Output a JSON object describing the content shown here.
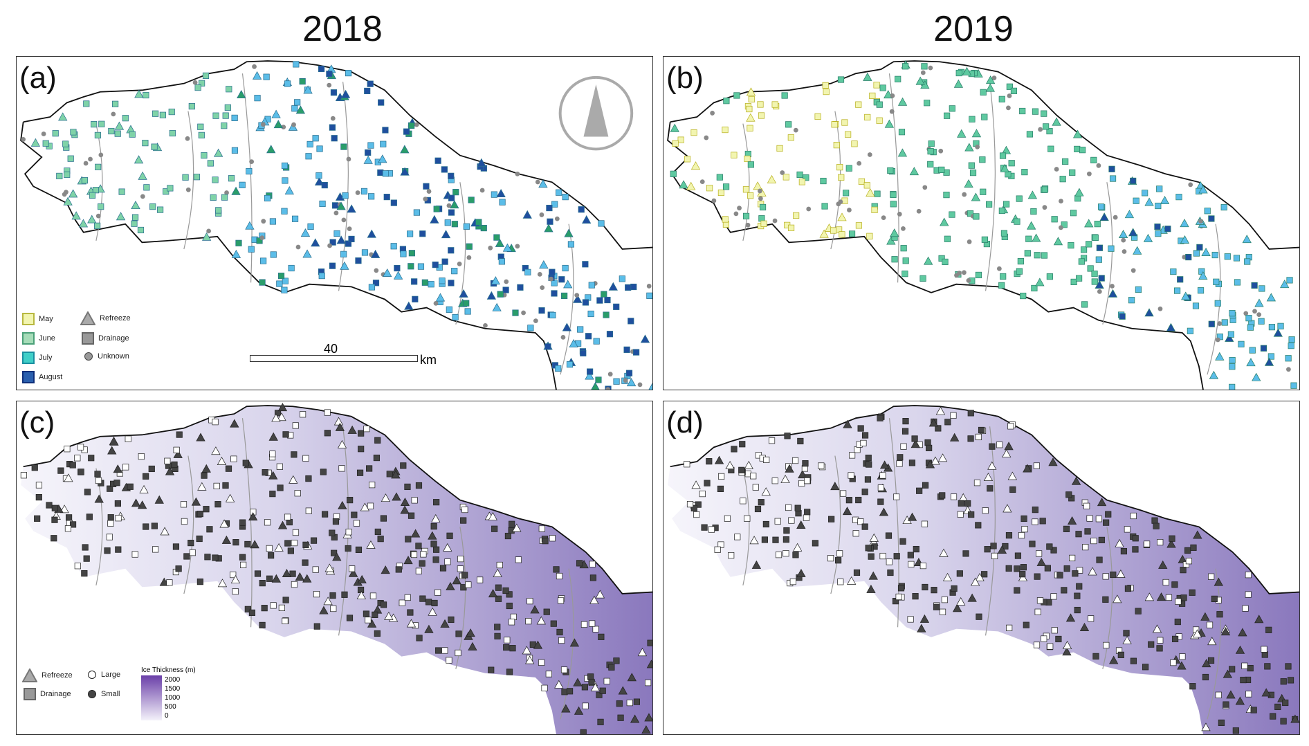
{
  "titles": {
    "left": "2018",
    "right": "2019"
  },
  "panels": {
    "a": "(a)",
    "b": "(b)",
    "c": "(c)",
    "d": "(d)"
  },
  "legend_month": {
    "may": "May",
    "june": "June",
    "july": "July",
    "august": "August",
    "refreeze": "Refreeze",
    "drainage": "Drainage",
    "unknown": "Unknown"
  },
  "legend_size": {
    "refreeze": "Refreeze",
    "drainage": "Drainage",
    "large": "Large",
    "small": "Small"
  },
  "scalebar": {
    "value": "40",
    "unit": "km"
  },
  "colorbar": {
    "title": "Ice Thickness (m)",
    "ticks": [
      "2000",
      "1500",
      "1000",
      "500",
      "0"
    ]
  },
  "colors": {
    "may": "#f2f5b0",
    "june": "#7fd3a8",
    "july": "#5bbde8",
    "august": "#1f4f9e",
    "unknown": "#777777",
    "thick": "#7b5cb0"
  }
}
